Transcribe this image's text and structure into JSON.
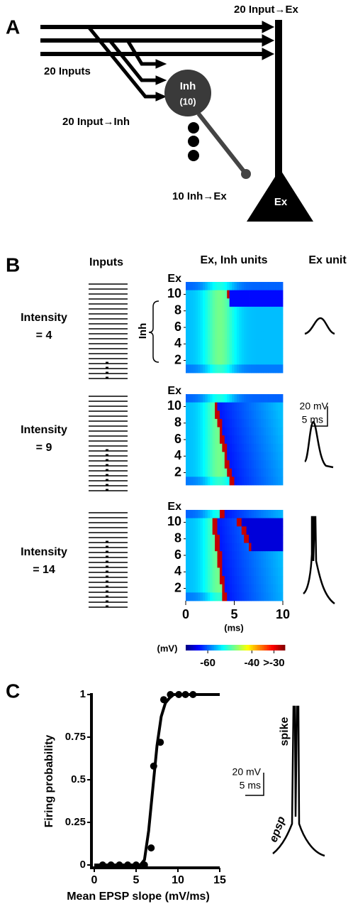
{
  "panel_a": {
    "label": "A",
    "input_ex": "20 Input→Ex",
    "inputs": "20 Inputs",
    "inh": "Inh",
    "inh_count": "(10)",
    "input_inh": "20 Input→Inh",
    "inh_ex": "10 Inh→Ex",
    "ex": "Ex"
  },
  "panel_b": {
    "label": "B",
    "col_inputs": "Inputs",
    "col_units": "Ex, Inh units",
    "col_ex": "Ex unit",
    "rows": [
      {
        "intensity": "Intensity",
        "value": "= 4"
      },
      {
        "intensity": "Intensity",
        "value": "= 9"
      },
      {
        "intensity": "Intensity",
        "value": "= 14"
      }
    ],
    "ex_label": "Ex",
    "unit_ticks": [
      10,
      8,
      6,
      4,
      2
    ],
    "inh_label": "Inh",
    "time_lim": [
      0,
      10
    ],
    "time_ticks": [
      0,
      5,
      10
    ],
    "time_unit": "(ms)",
    "color_unit": "(mV)",
    "color_lim": [
      -70,
      -25
    ],
    "color_ticks": [
      -60,
      -40,
      {
        "value": -30,
        "label": ">-30"
      }
    ],
    "scale_mv": "20 mV",
    "scale_ms": "5 ms"
  },
  "panel_c": {
    "label": "C",
    "spike": "spike",
    "epsp": "epsp",
    "scale_mv": "20 mV",
    "scale_ms": "5 ms"
  },
  "chart_data": {
    "type": "scatter",
    "x_label": "Mean EPSP slope (mV/ms)",
    "y_label": "Firing probability",
    "x": [
      1,
      2,
      3,
      4,
      5,
      6,
      6.8,
      7.1,
      7.9,
      8.3,
      9.1,
      10.1,
      10.9,
      11.8
    ],
    "values": [
      0,
      0,
      0,
      0,
      0,
      0,
      0.1,
      0.58,
      0.72,
      0.97,
      1,
      1,
      1,
      1
    ],
    "fit": {
      "x": [
        0,
        5.5,
        6,
        6.5,
        7,
        7.5,
        8,
        8.5,
        9,
        9.5,
        10,
        15
      ],
      "values": [
        0,
        0,
        0.03,
        0.2,
        0.45,
        0.7,
        0.87,
        0.95,
        0.98,
        1,
        1,
        1
      ]
    },
    "color": "#000000",
    "xlim": [
      0,
      15
    ],
    "xticks": [
      0,
      5,
      10,
      15
    ],
    "ylim": [
      0,
      1
    ],
    "yticks": [
      0,
      0.25,
      0.5,
      0.75,
      1
    ]
  }
}
